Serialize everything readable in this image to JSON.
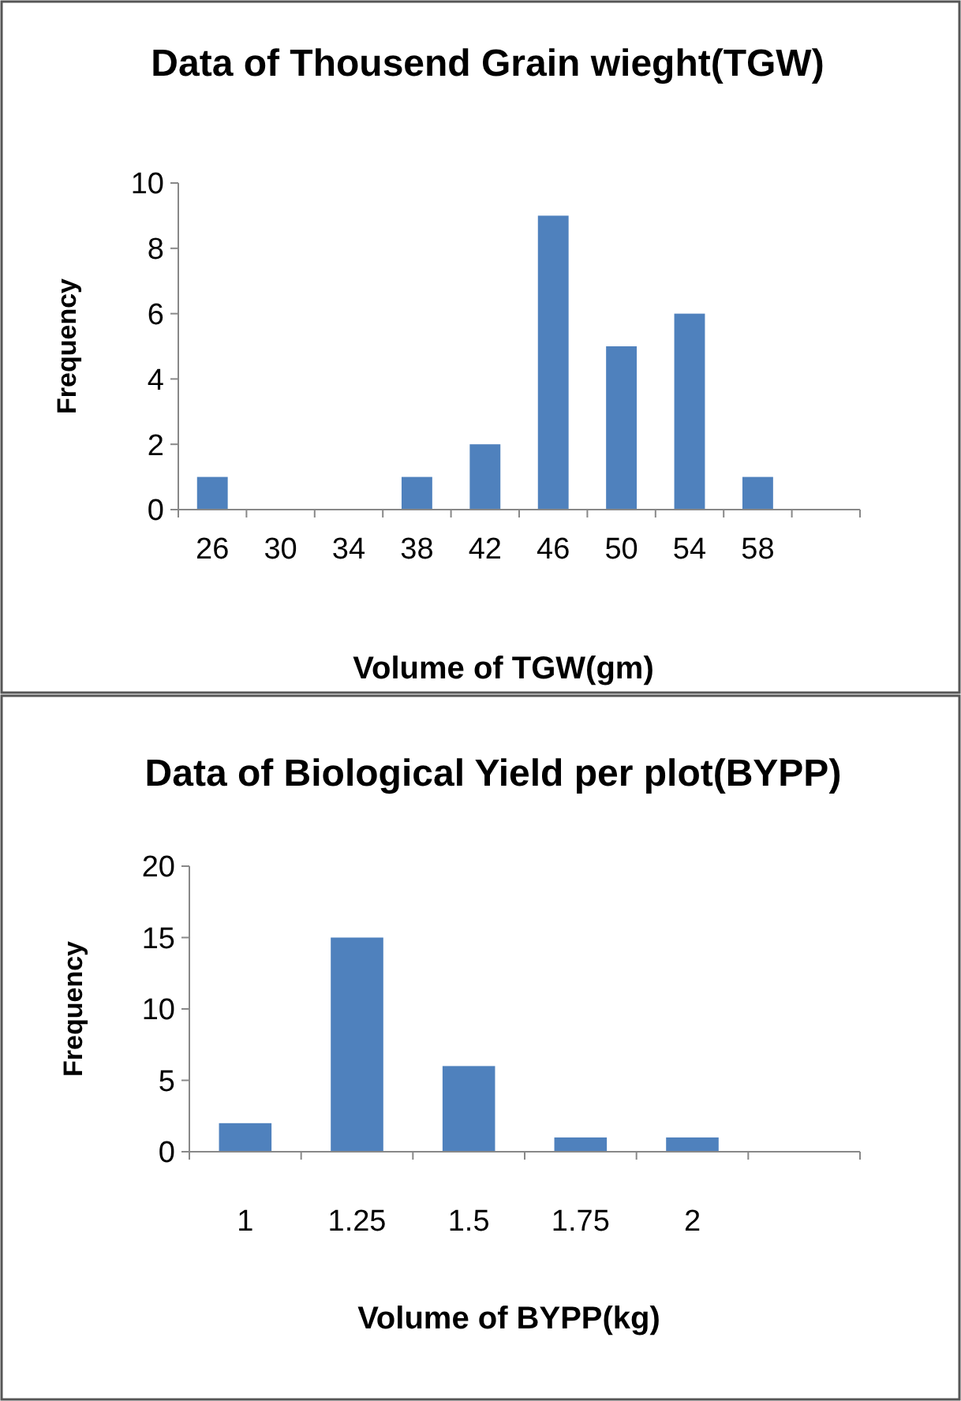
{
  "chart_data": [
    {
      "type": "bar",
      "title": "Data of Thousend Grain wieght(TGW)",
      "xlabel": "Volume of TGW(gm)",
      "ylabel": "Frequency",
      "categories": [
        "26",
        "30",
        "34",
        "38",
        "42",
        "46",
        "50",
        "54",
        "58",
        null
      ],
      "values": [
        1,
        0,
        0,
        1,
        2,
        9,
        5,
        6,
        1,
        0
      ],
      "color": "#4f81bd",
      "ylim": [
        0,
        10
      ],
      "yticks": [
        0,
        2,
        4,
        6,
        8,
        10
      ],
      "grid": false
    },
    {
      "type": "bar",
      "title": "Data of Biological Yield per plot(BYPP)",
      "xlabel": "Volume of BYPP(kg)",
      "ylabel": "Frequency",
      "categories": [
        "1",
        "1.25",
        "1.5",
        "1.75",
        "2",
        null
      ],
      "values": [
        2,
        15,
        6,
        1,
        1,
        0
      ],
      "color": "#4f81bd",
      "ylim": [
        0,
        20
      ],
      "yticks": [
        0,
        5,
        10,
        15,
        20
      ],
      "grid": false
    }
  ]
}
